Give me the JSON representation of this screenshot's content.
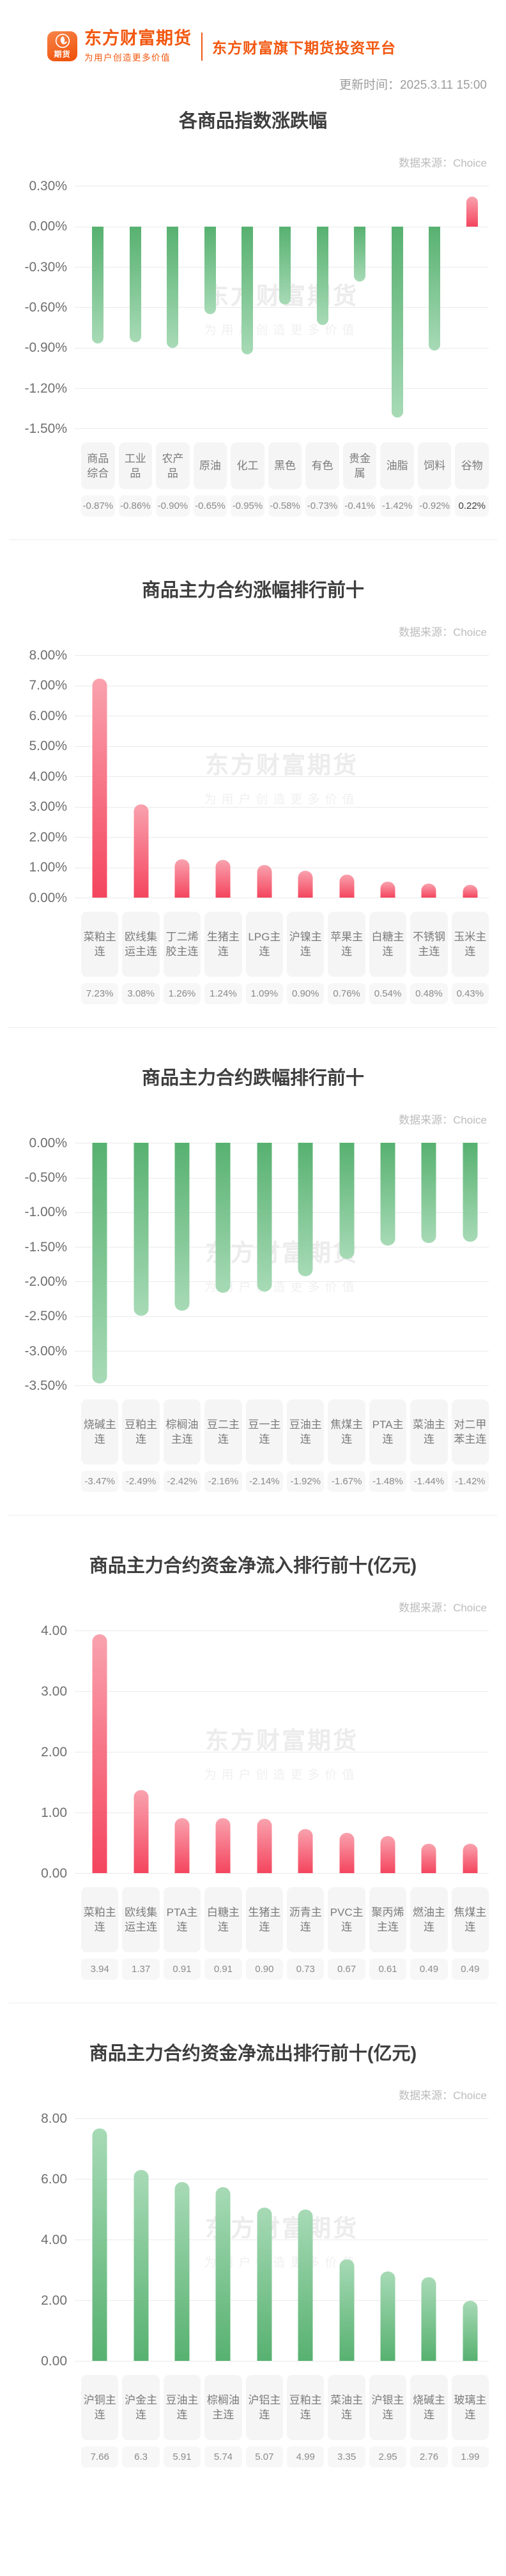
{
  "header": {
    "logo_badge": "期货",
    "brand_name": "东方财富期货",
    "brand_slogan": "为用户创造更多价值",
    "platform_tagline": "东方财富旗下期货投资平台",
    "update_time": "更新时间：2025.3.11 15:00"
  },
  "source_label": "数据来源：Choice",
  "watermark": {
    "line1": "东方财富期货",
    "line2": "为用户创造更多价值"
  },
  "colors": {
    "brand_orange": "#f2570f",
    "up_red_strong": "#f4455e",
    "up_red_light": "#f9a2ae",
    "down_green_strong": "#57b170",
    "down_green_light": "#a7dab6",
    "gridline": "#eaeaea",
    "label_box_bg": "#f5f5f6"
  },
  "chart_data": [
    {
      "type": "bar",
      "title": "各商品指数涨跌幅",
      "color_scheme": "by_sign",
      "ylim": [
        -1.5,
        0.3
      ],
      "grid": true,
      "yticks": [
        {
          "label": "0.30%",
          "v": 0.3
        },
        {
          "label": "0.00%",
          "v": 0
        },
        {
          "label": "-0.30%",
          "v": -0.3
        },
        {
          "label": "-0.60%",
          "v": -0.6
        },
        {
          "label": "-0.90%",
          "v": -0.9
        },
        {
          "label": "-1.20%",
          "v": -1.2
        },
        {
          "label": "-1.50%",
          "v": -1.5
        }
      ],
      "categories": [
        "商品综合",
        "工业品",
        "农产品",
        "原油",
        "化工",
        "黑色",
        "有色",
        "贵金属",
        "油脂",
        "饲料",
        "谷物"
      ],
      "values": [
        -0.87,
        -0.86,
        -0.9,
        -0.65,
        -0.95,
        -0.58,
        -0.73,
        -0.41,
        -1.42,
        -0.92,
        0.22
      ],
      "value_labels": [
        "-0.87%",
        "-0.86%",
        "-0.90%",
        "-0.65%",
        "-0.95%",
        "-0.58%",
        "-0.73%",
        "-0.41%",
        "-1.42%",
        "-0.92%",
        "0.22%"
      ]
    },
    {
      "type": "bar",
      "title": "商品主力合约涨幅排行前十",
      "color_scheme": "red",
      "ylim": [
        0,
        8
      ],
      "grid": true,
      "yticks": [
        {
          "label": "8.00%",
          "v": 8
        },
        {
          "label": "7.00%",
          "v": 7
        },
        {
          "label": "6.00%",
          "v": 6
        },
        {
          "label": "5.00%",
          "v": 5
        },
        {
          "label": "4.00%",
          "v": 4
        },
        {
          "label": "3.00%",
          "v": 3
        },
        {
          "label": "2.00%",
          "v": 2
        },
        {
          "label": "1.00%",
          "v": 1
        },
        {
          "label": "0.00%",
          "v": 0
        }
      ],
      "categories": [
        "菜粕主连",
        "欧线集运主连",
        "丁二烯胶主连",
        "生猪主连",
        "LPG主连",
        "沪镍主连",
        "苹果主连",
        "白糖主连",
        "不锈钢主连",
        "玉米主连"
      ],
      "values": [
        7.23,
        3.08,
        1.26,
        1.24,
        1.09,
        0.9,
        0.76,
        0.54,
        0.48,
        0.43
      ],
      "value_labels": [
        "7.23%",
        "3.08%",
        "1.26%",
        "1.24%",
        "1.09%",
        "0.90%",
        "0.76%",
        "0.54%",
        "0.48%",
        "0.43%"
      ]
    },
    {
      "type": "bar",
      "title": "商品主力合约跌幅排行前十",
      "color_scheme": "green",
      "ylim": [
        -3.5,
        0
      ],
      "grid": true,
      "yticks": [
        {
          "label": "0.00%",
          "v": 0
        },
        {
          "label": "-0.50%",
          "v": -0.5
        },
        {
          "label": "-1.00%",
          "v": -1
        },
        {
          "label": "-1.50%",
          "v": -1.5
        },
        {
          "label": "-2.00%",
          "v": -2
        },
        {
          "label": "-2.50%",
          "v": -2.5
        },
        {
          "label": "-3.00%",
          "v": -3
        },
        {
          "label": "-3.50%",
          "v": -3.5
        }
      ],
      "categories": [
        "烧碱主连",
        "豆粕主连",
        "棕榈油主连",
        "豆二主连",
        "豆一主连",
        "豆油主连",
        "焦煤主连",
        "PTA主连",
        "菜油主连",
        "对二甲苯主连"
      ],
      "values": [
        -3.47,
        -2.49,
        -2.42,
        -2.16,
        -2.14,
        -1.92,
        -1.67,
        -1.48,
        -1.44,
        -1.42
      ],
      "value_labels": [
        "-3.47%",
        "-2.49%",
        "-2.42%",
        "-2.16%",
        "-2.14%",
        "-1.92%",
        "-1.67%",
        "-1.48%",
        "-1.44%",
        "-1.42%"
      ]
    },
    {
      "type": "bar",
      "title": "商品主力合约资金净流入排行前十(亿元)",
      "color_scheme": "red",
      "ylim": [
        0,
        4
      ],
      "grid": true,
      "yticks": [
        {
          "label": "4.00",
          "v": 4
        },
        {
          "label": "3.00",
          "v": 3
        },
        {
          "label": "2.00",
          "v": 2
        },
        {
          "label": "1.00",
          "v": 1
        },
        {
          "label": "0.00",
          "v": 0
        }
      ],
      "categories": [
        "菜粕主连",
        "欧线集运主连",
        "PTA主连",
        "白糖主连",
        "生猪主连",
        "沥青主连",
        "PVC主连",
        "聚丙烯主连",
        "燃油主连",
        "焦煤主连"
      ],
      "values": [
        3.94,
        1.37,
        0.91,
        0.91,
        0.9,
        0.73,
        0.67,
        0.61,
        0.49,
        0.49
      ],
      "value_labels": [
        "3.94",
        "1.37",
        "0.91",
        "0.91",
        "0.90",
        "0.73",
        "0.67",
        "0.61",
        "0.49",
        "0.49"
      ]
    },
    {
      "type": "bar",
      "title": "商品主力合约资金净流出排行前十(亿元)",
      "color_scheme": "green",
      "ylim": [
        0,
        8
      ],
      "grid": true,
      "yticks": [
        {
          "label": "8.00",
          "v": 8
        },
        {
          "label": "6.00",
          "v": 6
        },
        {
          "label": "4.00",
          "v": 4
        },
        {
          "label": "2.00",
          "v": 2
        },
        {
          "label": "0.00",
          "v": 0
        }
      ],
      "categories": [
        "沪铜主连",
        "沪金主连",
        "豆油主连",
        "棕榈油主连",
        "沪铝主连",
        "豆粕主连",
        "菜油主连",
        "沪银主连",
        "烧碱主连",
        "玻璃主连"
      ],
      "values": [
        7.66,
        6.3,
        5.91,
        5.74,
        5.07,
        4.99,
        3.35,
        2.95,
        2.76,
        1.99
      ],
      "value_labels": [
        "7.66",
        "6.3",
        "5.91",
        "5.74",
        "5.07",
        "4.99",
        "3.35",
        "2.95",
        "2.76",
        "1.99"
      ]
    }
  ]
}
